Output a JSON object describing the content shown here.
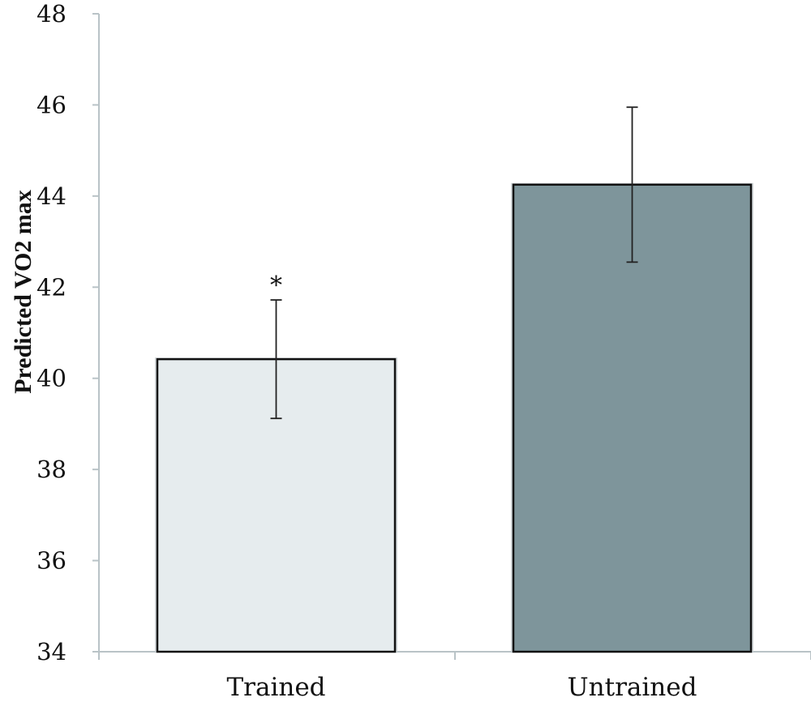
{
  "chart_data": {
    "type": "bar",
    "categories": [
      "Trained",
      "Untrained"
    ],
    "values": [
      40.42,
      44.25
    ],
    "errors": [
      1.3,
      1.7
    ],
    "annotations": [
      "*",
      ""
    ],
    "ylabel": "Predicted VO2 max",
    "xlabel": "",
    "ylim": [
      34,
      48
    ],
    "yticks": [
      34,
      36,
      38,
      40,
      42,
      44,
      46,
      48
    ],
    "colors": [
      "#e6ecee",
      "#7e959b"
    ],
    "grid": false
  }
}
